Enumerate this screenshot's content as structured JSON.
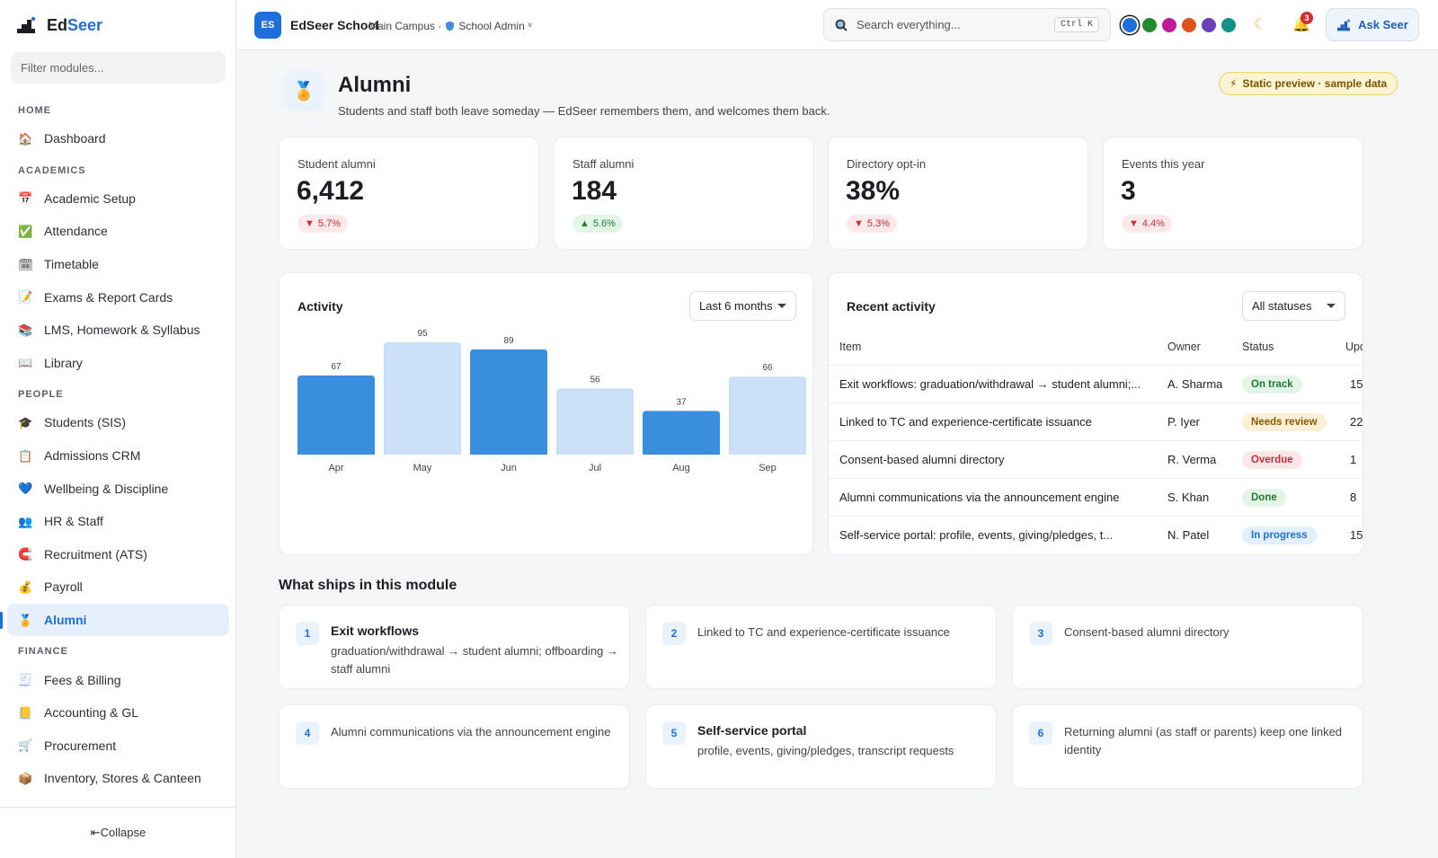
{
  "sidebar": {
    "logo_prefix": "Ed",
    "logo_suffix": "Seer",
    "filter_placeholder": "Filter modules...",
    "sections": [
      {
        "title": "HOME",
        "items": [
          {
            "label": "Dashboard",
            "icon": "house-icon",
            "glyph": "🏠"
          }
        ]
      },
      {
        "title": "ACADEMICS",
        "items": [
          {
            "label": "Academic Setup",
            "icon": "calendar-icon",
            "glyph": "📅"
          },
          {
            "label": "Attendance",
            "icon": "checkbox-icon",
            "glyph": "✅"
          },
          {
            "label": "Timetable",
            "icon": "calendar-grid-icon",
            "glyph": "🗓"
          },
          {
            "label": "Exams & Report Cards",
            "icon": "report-card-icon",
            "glyph": "📝"
          },
          {
            "label": "LMS, Homework & Syllabus",
            "icon": "books-icon",
            "glyph": "📚"
          },
          {
            "label": "Library",
            "icon": "open-book-icon",
            "glyph": "📖"
          }
        ]
      },
      {
        "title": "PEOPLE",
        "items": [
          {
            "label": "Students (SIS)",
            "icon": "graduation-cap-icon",
            "glyph": "🎓"
          },
          {
            "label": "Admissions CRM",
            "icon": "clipboard-icon",
            "glyph": "📋"
          },
          {
            "label": "Wellbeing & Discipline",
            "icon": "heart-icon",
            "glyph": "💙"
          },
          {
            "label": "HR & Staff",
            "icon": "people-icon",
            "glyph": "👥"
          },
          {
            "label": "Recruitment (ATS)",
            "icon": "magnet-icon",
            "glyph": "🧲"
          },
          {
            "label": "Payroll",
            "icon": "money-bag-icon",
            "glyph": "💰"
          },
          {
            "label": "Alumni",
            "icon": "medal-icon",
            "glyph": "🏅",
            "active": true
          }
        ]
      },
      {
        "title": "FINANCE",
        "items": [
          {
            "label": "Fees & Billing",
            "icon": "receipt-icon",
            "glyph": "🧾"
          },
          {
            "label": "Accounting & GL",
            "icon": "ledger-icon",
            "glyph": "📒"
          },
          {
            "label": "Procurement",
            "icon": "cart-icon",
            "glyph": "🛒"
          },
          {
            "label": "Inventory, Stores & Canteen",
            "icon": "package-icon",
            "glyph": "📦"
          }
        ]
      }
    ],
    "collapse_label": "⇤Collapse"
  },
  "topbar": {
    "school_initials": "ES",
    "school_name": "EdSeer School",
    "campus": "Main Campus ·",
    "role": "School Admin",
    "role_caret": "ᵛ",
    "search_placeholder": "Search everything...",
    "shortcut": "Ctrl K",
    "theme_colors": [
      "#1e6fd9",
      "#1f8a2e",
      "#c2189a",
      "#e0531c",
      "#6b3fb8",
      "#13908a"
    ],
    "notification_count": "3",
    "ask_label": "Ask Seer"
  },
  "page": {
    "title": "Alumni",
    "subtitle": "Students and staff both leave someday — EdSeer remembers them, and welcomes them back.",
    "preview_badge": "Static preview · sample data",
    "preview_glyph": "⚡"
  },
  "stats": [
    {
      "label": "Student alumni",
      "value": "6,412",
      "delta": "5.7%",
      "direction": "down"
    },
    {
      "label": "Staff alumni",
      "value": "184",
      "delta": "5.6%",
      "direction": "up"
    },
    {
      "label": "Directory opt-in",
      "value": "38%",
      "delta": "5.3%",
      "direction": "down"
    },
    {
      "label": "Events this year",
      "value": "3",
      "delta": "4.4%",
      "direction": "down"
    }
  ],
  "activity": {
    "title": "Activity",
    "range_label": "Last 6 months"
  },
  "chart_data": {
    "type": "bar",
    "title": "Activity",
    "categories": [
      "Apr",
      "May",
      "Jun",
      "Jul",
      "Aug",
      "Sep"
    ],
    "values": [
      67,
      95,
      89,
      56,
      37,
      66
    ],
    "colors": [
      "#3a8fdc",
      "#c9e0f6",
      "#3a8fdc",
      "#c9e0f6",
      "#3a8fdc",
      "#c9e0f6"
    ],
    "ylim": [
      0,
      95
    ],
    "grid": false,
    "legend": "none"
  },
  "recent": {
    "title": "Recent activity",
    "filter_label": "All statuses",
    "columns": [
      "Item",
      "Owner",
      "Status",
      "Upd"
    ],
    "rows": [
      {
        "item": "Exit workflows: graduation/withdrawal → student alumni;...",
        "owner": "A. Sharma",
        "status": "On track",
        "tone": "green",
        "updated": "15"
      },
      {
        "item": "Linked to TC and experience-certificate issuance",
        "owner": "P. Iyer",
        "status": "Needs review",
        "tone": "amber",
        "updated": "22"
      },
      {
        "item": "Consent-based alumni directory",
        "owner": "R. Verma",
        "status": "Overdue",
        "tone": "red",
        "updated": "1"
      },
      {
        "item": "Alumni communications via the announcement engine",
        "owner": "S. Khan",
        "status": "Done",
        "tone": "green",
        "updated": "8"
      },
      {
        "item": "Self-service portal: profile, events, giving/pledges, t...",
        "owner": "N. Patel",
        "status": "In progress",
        "tone": "blue",
        "updated": "15"
      }
    ]
  },
  "module": {
    "title": "What ships in this module",
    "features": [
      {
        "num": "1",
        "title": "Exit workflows",
        "desc": "graduation/withdrawal → student alumni; offboarding → staff alumni"
      },
      {
        "num": "2",
        "title": "",
        "desc": "Linked to TC and experience-certificate issuance"
      },
      {
        "num": "3",
        "title": "",
        "desc": "Consent-based alumni directory"
      },
      {
        "num": "4",
        "title": "",
        "desc": "Alumni communications via the announcement engine"
      },
      {
        "num": "5",
        "title": "Self-service portal",
        "desc": "profile, events, giving/pledges, transcript requests"
      },
      {
        "num": "6",
        "title": "",
        "desc": "Returning alumni (as staff or parents) keep one linked identity"
      }
    ]
  }
}
